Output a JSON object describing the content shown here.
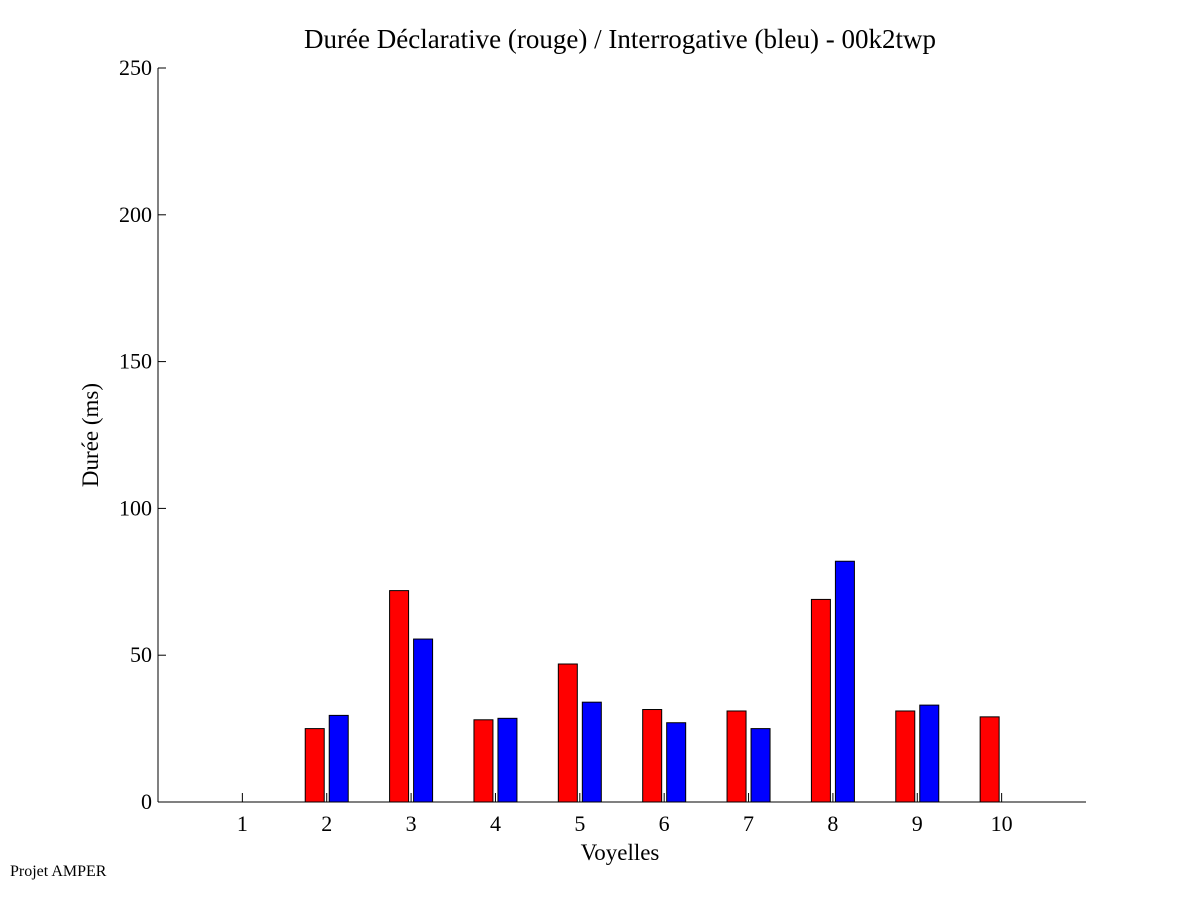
{
  "chart_data": {
    "type": "bar",
    "title": "Durée Déclarative (rouge) / Interrogative (bleu) - 00k2twp",
    "xlabel": "Voyelles",
    "ylabel": "Durée (ms)",
    "categories": [
      "1",
      "2",
      "3",
      "4",
      "5",
      "6",
      "7",
      "8",
      "9",
      "10"
    ],
    "series": [
      {
        "color": "#ff0000",
        "values": [
          0,
          25,
          72,
          28,
          47,
          31.5,
          31,
          69,
          31,
          29
        ]
      },
      {
        "color": "#0000ff",
        "values": [
          0,
          29.5,
          55.5,
          28.5,
          34,
          27,
          25,
          82,
          33,
          0
        ]
      }
    ],
    "xlim": [
      0,
      11
    ],
    "ylim": [
      0,
      250
    ],
    "yticks": [
      0,
      50,
      100,
      150,
      200,
      250
    ],
    "grid": false,
    "legend": "none"
  },
  "footer": {
    "note": "Projet AMPER"
  }
}
